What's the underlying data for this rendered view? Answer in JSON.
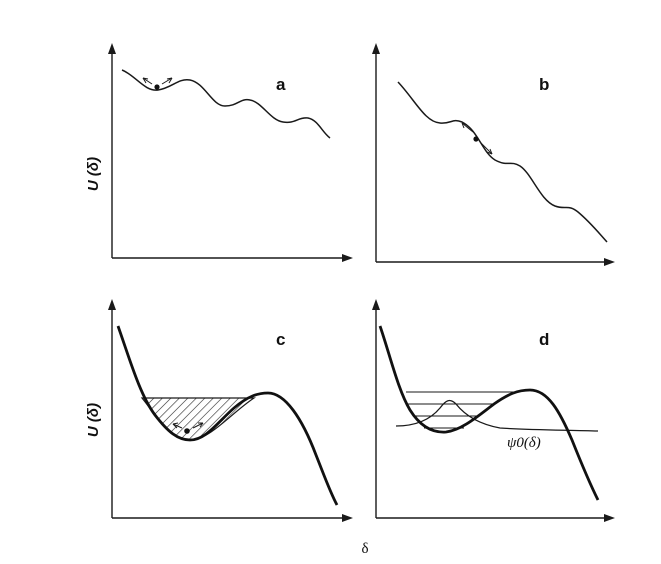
{
  "figure": {
    "y_axis_label": "U (δ)",
    "x_axis_label": "δ",
    "panels": [
      {
        "id": "a",
        "label": "a"
      },
      {
        "id": "b",
        "label": "b"
      },
      {
        "id": "c",
        "label": "c"
      },
      {
        "id": "d",
        "label": "d",
        "wavefunction_label": "ψ0(δ)"
      }
    ]
  }
}
